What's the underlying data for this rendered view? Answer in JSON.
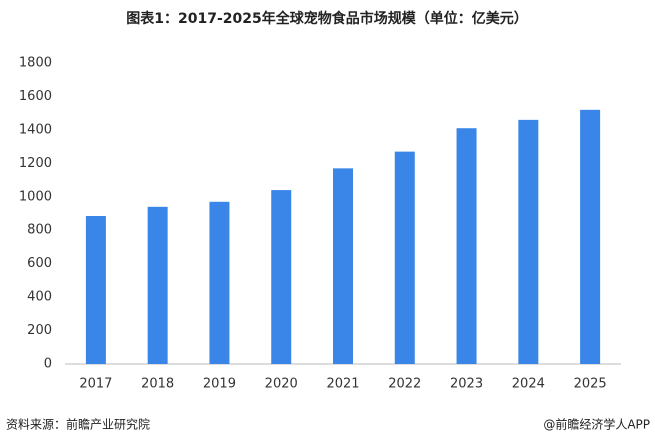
{
  "chart_data": {
    "type": "bar",
    "title": "图表1：2017-2025年全球宠物食品市场规模（单位：亿美元）",
    "categories": [
      "2017",
      "2018",
      "2019",
      "2020",
      "2021",
      "2022",
      "2023",
      "2024",
      "2025"
    ],
    "values": [
      885,
      940,
      970,
      1040,
      1170,
      1270,
      1410,
      1460,
      1520
    ],
    "color": "#3a86e8",
    "ylim": [
      0,
      1800
    ],
    "yticks": [
      0,
      200,
      400,
      600,
      800,
      1000,
      1200,
      1400,
      1600,
      1800
    ],
    "grid": false,
    "source": "资料来源：前瞻产业研究院",
    "credit": "@前瞻经济学人APP"
  }
}
